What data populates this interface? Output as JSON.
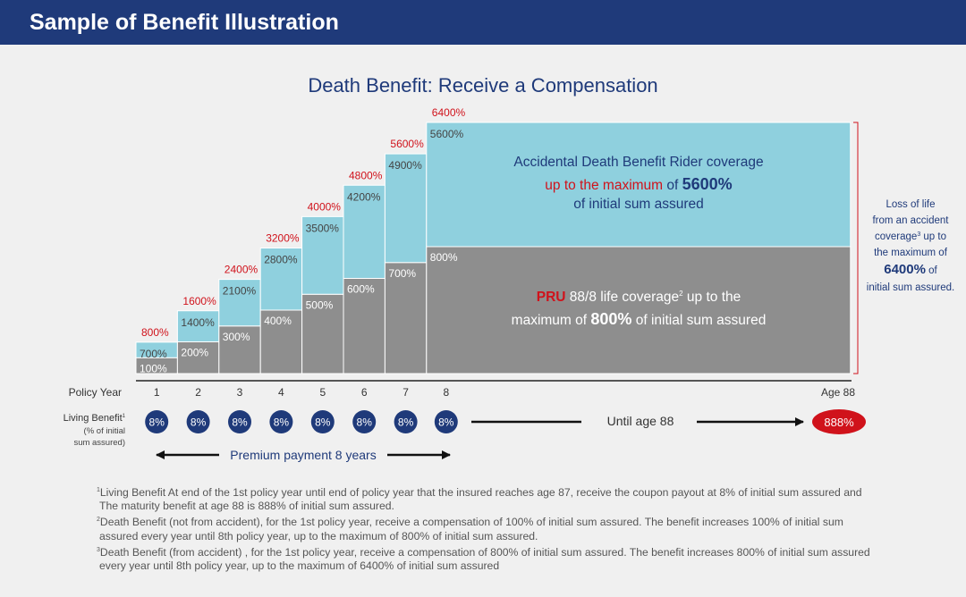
{
  "header": {
    "title": "Sample of Benefit Illustration"
  },
  "chart_data": {
    "type": "bar",
    "stacked": true,
    "title": "Death Benefit: Receive a Compensation",
    "categories": [
      "1",
      "2",
      "3",
      "4",
      "5",
      "6",
      "7",
      "8"
    ],
    "final_category": "Age 88",
    "series": [
      {
        "name": "PRU 88/8 life coverage",
        "values": [
          100,
          200,
          300,
          400,
          500,
          600,
          700,
          800
        ]
      },
      {
        "name": "Accidental Death Benefit Rider coverage",
        "values": [
          700,
          1400,
          2100,
          2800,
          3500,
          4200,
          4900,
          5600
        ]
      }
    ],
    "lower_labels": [
      "100%",
      "200%",
      "300%",
      "400%",
      "500%",
      "600%",
      "700%",
      "800%"
    ],
    "upper_labels": [
      "700%",
      "1400%",
      "2100%",
      "2800%",
      "3500%",
      "4200%",
      "4900%",
      "5600%"
    ],
    "total_labels": [
      "800%",
      "1600%",
      "2400%",
      "3200%",
      "4000%",
      "4800%",
      "5600%",
      "6400%"
    ],
    "colors": {
      "lower": "#8e8e8e",
      "upper": "#8fd0de",
      "total_label": "#d0121b",
      "axis_text": "#333333",
      "navy": "#1f3a7a"
    },
    "x_axis_label": "Policy Year",
    "adb_note": {
      "line1": "Accidental Death Benefit Rider coverage",
      "line2_red": "up to the maximum",
      "line2_of": " of ",
      "line2_bold": "5600%",
      "line3": "of initial sum assured"
    },
    "pru_note": {
      "brand": "PRU",
      "line1_rest": " 88/8 life coverage",
      "sup": "2",
      "line1_end": " up to the",
      "line2_start": "maximum of ",
      "line2_bold": "800%",
      "line2_end": " of initial sum assured"
    },
    "side_note": {
      "line1": "Loss of life",
      "line2": "from an accident",
      "line3_a": "coverage",
      "line3_sup": "3",
      "line3_b": " up to",
      "line4": "the maximum of",
      "line5_bold": "6400%",
      "line5_rest": " of",
      "line6": "initial sum assured."
    },
    "living_benefit": {
      "label": "Living Benefit",
      "label_sup": "1",
      "sub1": "(% of initial",
      "sub2": "sum assured)",
      "values": [
        "8%",
        "8%",
        "8%",
        "8%",
        "8%",
        "8%",
        "8%",
        "8%"
      ],
      "until_text": "Until age 88",
      "maturity_value": "888%"
    },
    "premium_text": "Premium payment 8 years"
  },
  "footnotes": [
    {
      "sup": "1",
      "text": "Living Benefit At end of the 1st policy year until end of policy year that the insured reaches age 87, receive the coupon payout at 8% of initial sum assured and The maturity benefit at age 88 is 888% of initial sum assured."
    },
    {
      "sup": "2",
      "text": "Death Benefit (not from accident), for the 1st policy year, receive a compensation of 100% of initial sum assured. The benefit increases 100% of initial sum assured every year until 8th policy year, up to the maximum of 800% of initial sum assured."
    },
    {
      "sup": "3",
      "text": "Death Benefit (from accident) , for the 1st policy year, receive a compensation of 800% of initial sum assured.  The benefit increases 800% of initial sum assured every year until 8th policy year, up to the maximum of 6400% of initial sum assured"
    }
  ]
}
